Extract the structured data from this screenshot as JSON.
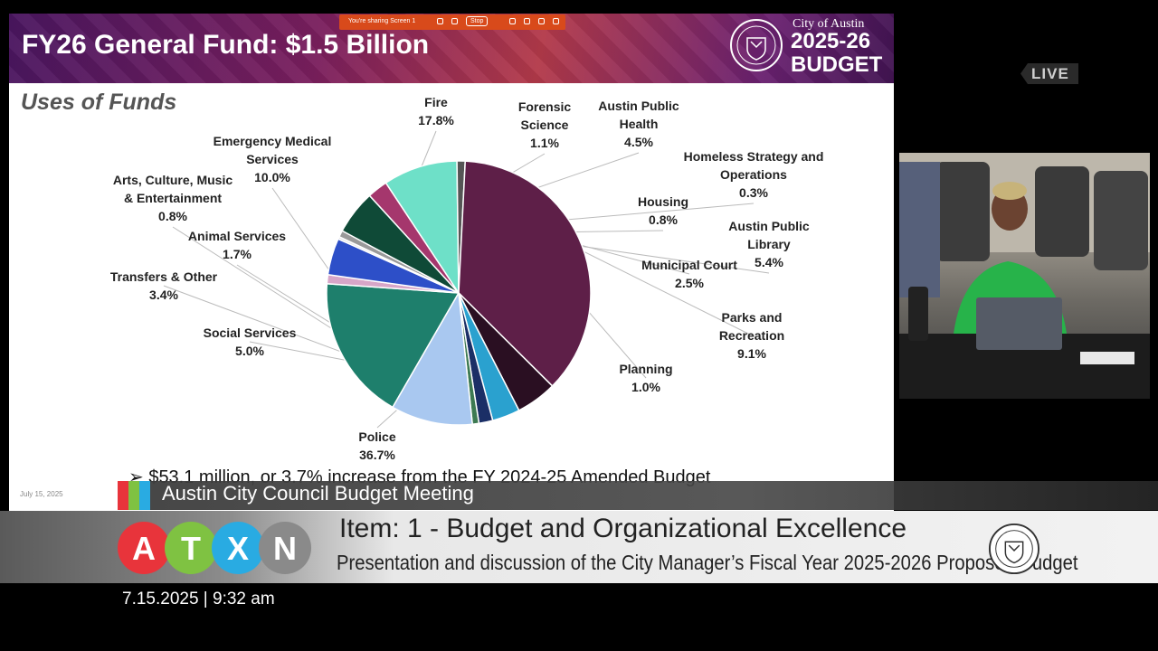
{
  "slide": {
    "title": "FY26 General Fund: $1.5 Billion",
    "brand_city": "City of Austin",
    "brand_year": "2025-26",
    "brand_budget": "BUDGET",
    "subtitle": "Uses of Funds",
    "bullet": "➢ $53.1 million, or 3.7% increase from the FY 2024-25 Amended Budget",
    "footer_date": "July 15, 2025"
  },
  "share_bar": {
    "text": "You're sharing  Screen 1",
    "stop_label": "Stop"
  },
  "chart_data": {
    "type": "pie",
    "title": "Uses of Funds",
    "slices": [
      {
        "name": "Fire",
        "value": 17.8,
        "label": "17.8%",
        "color": "#1e7f6c"
      },
      {
        "name": "Forensic Science",
        "value": 1.1,
        "label": "1.1%",
        "color": "#d7a6c8"
      },
      {
        "name": "Austin Public Health",
        "value": 4.5,
        "label": "4.5%",
        "color": "#2d4fc8"
      },
      {
        "name": "Homeless Strategy and Operations",
        "value": 0.3,
        "label": "0.3%",
        "color": "#e6e6e6"
      },
      {
        "name": "Housing",
        "value": 0.8,
        "label": "0.8%",
        "color": "#9a9a9a"
      },
      {
        "name": "Austin Public Library",
        "value": 5.4,
        "label": "5.4%",
        "color": "#0f4a37"
      },
      {
        "name": "Municipal Court",
        "value": 2.5,
        "label": "2.5%",
        "color": "#a5376d"
      },
      {
        "name": "Parks and Recreation",
        "value": 9.1,
        "label": "9.1%",
        "color": "#6ee0c8"
      },
      {
        "name": "Planning",
        "value": 1.0,
        "label": "1.0%",
        "color": "#555555"
      },
      {
        "name": "Police",
        "value": 36.7,
        "label": "36.7%",
        "color": "#5e1f48"
      },
      {
        "name": "Social Services",
        "value": 5.0,
        "label": "5.0%",
        "color": "#2a0f22"
      },
      {
        "name": "Transfers & Other",
        "value": 3.4,
        "label": "3.4%",
        "color": "#2aa1cf"
      },
      {
        "name": "Animal Services",
        "value": 1.7,
        "label": "1.7%",
        "color": "#1b2f66"
      },
      {
        "name": "Arts, Culture, Music & Entertainment",
        "value": 0.8,
        "label": "0.8%",
        "color": "#3d7a52"
      },
      {
        "name": "Emergency Medical Services",
        "value": 10.0,
        "label": "10.0%",
        "color": "#a9c8f0"
      }
    ]
  },
  "labels": [
    {
      "name_lines": "Fire",
      "pct": "17.8%"
    },
    {
      "name_lines": "Forensic\nScience",
      "pct": "1.1%"
    },
    {
      "name_lines": "Austin Public\nHealth",
      "pct": "4.5%"
    },
    {
      "name_lines": "Homeless Strategy and\nOperations",
      "pct": "0.3%"
    },
    {
      "name_lines": "Housing",
      "pct": "0.8%"
    },
    {
      "name_lines": "Austin Public\nLibrary",
      "pct": "5.4%"
    },
    {
      "name_lines": "Municipal Court",
      "pct": "2.5%"
    },
    {
      "name_lines": "Parks and\nRecreation",
      "pct": "9.1%"
    },
    {
      "name_lines": "Planning",
      "pct": "1.0%"
    },
    {
      "name_lines": "Police",
      "pct": "36.7%"
    },
    {
      "name_lines": "Social Services",
      "pct": "5.0%"
    },
    {
      "name_lines": "Transfers & Other",
      "pct": "3.4%"
    },
    {
      "name_lines": "Animal Services",
      "pct": "1.7%"
    },
    {
      "name_lines": "Arts, Culture, Music\n& Entertainment",
      "pct": "0.8%"
    },
    {
      "name_lines": "Emergency Medical\nServices",
      "pct": "10.0%"
    }
  ],
  "live_badge": "LIVE",
  "lower_third": {
    "meeting_title": "Austin City Council Budget Meeting",
    "item_title": "Item: 1 - Budget and Organizational Excellence",
    "item_description": "Presentation and discussion of the City Manager’s Fiscal Year 2025-2026 Proposed Budget",
    "logo_letters": [
      "A",
      "T",
      "X",
      "N"
    ],
    "logo_colors": [
      "#e8343b",
      "#7fc242",
      "#29abe2",
      "#8a8a8a"
    ],
    "datetime": "7.15.2025 | 9:32 am"
  }
}
